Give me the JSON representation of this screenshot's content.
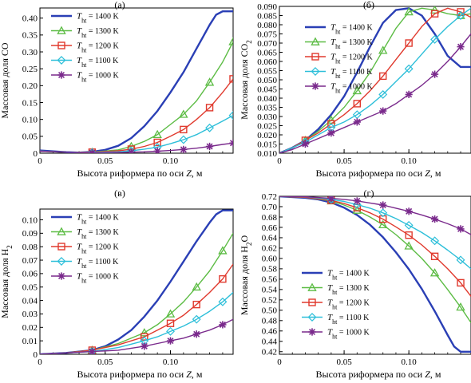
{
  "colors": {
    "1400": "#2a3fb5",
    "1300": "#5cbc44",
    "1200": "#e03a2e",
    "1100": "#2dbfd9",
    "1000": "#7a2a8c"
  },
  "legend_entries": [
    {
      "key": "1400",
      "sym": "line",
      "var": "T",
      "sub": "ht",
      "rest": " = 1400 K"
    },
    {
      "key": "1300",
      "sym": "triangle",
      "var": "T",
      "sub": "ht",
      "rest": " = 1300 K"
    },
    {
      "key": "1200",
      "sym": "square",
      "var": "T",
      "sub": "ht",
      "rest": " = 1200 K"
    },
    {
      "key": "1100",
      "sym": "diamond",
      "var": "T",
      "sub": "ht",
      "rest": " = 1100 K"
    },
    {
      "key": "1000",
      "sym": "star",
      "var": "T",
      "sub": "ht",
      "rest": " = 1000 K"
    }
  ],
  "chart_data": [
    {
      "id": "a",
      "type": "line",
      "panel_label": "(а)",
      "xlabel_pre": "Высота риформера по оси ",
      "xlabel_var": "Z",
      "xlabel_post": ", м",
      "ylabel_parts": [
        {
          "t": "Массовая доля CO"
        }
      ],
      "xlim": [
        0,
        0.148
      ],
      "ylim": [
        0,
        0.43
      ],
      "xticks": [
        0,
        0.05,
        0.1
      ],
      "xtick_labels": [
        "0",
        "0.05",
        "0.10"
      ],
      "yticks": [
        0,
        0.05,
        0.1,
        0.15,
        0.2,
        0.25,
        0.3,
        0.35,
        0.4
      ],
      "ytick_labels": [
        "0",
        "0.05",
        "0.10",
        "0.15",
        "0.20",
        "0.25",
        "0.30",
        "0.35",
        "0.40"
      ],
      "legend_position": "top-left",
      "series": [
        {
          "key": "1400",
          "x": [
            0,
            0.02,
            0.03,
            0.04,
            0.05,
            0.06,
            0.07,
            0.08,
            0.09,
            0.1,
            0.11,
            0.12,
            0.13,
            0.135,
            0.14,
            0.148
          ],
          "y": [
            0.008,
            0.003,
            0.002,
            0.004,
            0.01,
            0.022,
            0.045,
            0.08,
            0.125,
            0.18,
            0.24,
            0.31,
            0.38,
            0.41,
            0.42,
            0.42
          ]
        },
        {
          "key": "1300",
          "x": [
            0,
            0.02,
            0.04,
            0.06,
            0.07,
            0.08,
            0.09,
            0.1,
            0.11,
            0.12,
            0.13,
            0.14,
            0.148
          ],
          "y": [
            0.006,
            0.003,
            0.003,
            0.01,
            0.02,
            0.035,
            0.055,
            0.085,
            0.115,
            0.155,
            0.21,
            0.27,
            0.33
          ]
        },
        {
          "key": "1200",
          "x": [
            0,
            0.02,
            0.04,
            0.06,
            0.07,
            0.08,
            0.09,
            0.1,
            0.11,
            0.12,
            0.13,
            0.14,
            0.148
          ],
          "y": [
            0.006,
            0.003,
            0.003,
            0.007,
            0.012,
            0.02,
            0.032,
            0.05,
            0.07,
            0.1,
            0.135,
            0.18,
            0.22
          ]
        },
        {
          "key": "1100",
          "x": [
            0,
            0.02,
            0.04,
            0.06,
            0.07,
            0.08,
            0.09,
            0.1,
            0.11,
            0.12,
            0.13,
            0.14,
            0.148
          ],
          "y": [
            0.006,
            0.003,
            0.002,
            0.004,
            0.007,
            0.012,
            0.018,
            0.028,
            0.04,
            0.055,
            0.075,
            0.095,
            0.112
          ]
        },
        {
          "key": "1000",
          "x": [
            0,
            0.02,
            0.04,
            0.06,
            0.07,
            0.08,
            0.09,
            0.1,
            0.11,
            0.12,
            0.13,
            0.14,
            0.148
          ],
          "y": [
            0.006,
            0.003,
            0.001,
            0.002,
            0.003,
            0.004,
            0.006,
            0.008,
            0.011,
            0.015,
            0.02,
            0.026,
            0.03
          ]
        }
      ]
    },
    {
      "id": "b",
      "type": "line",
      "panel_label": "(б)",
      "xlabel_pre": "Высота риформера по оси ",
      "xlabel_var": "Z",
      "xlabel_post": ", м",
      "ylabel_parts": [
        {
          "t": "Массовая доля CO"
        },
        {
          "t": "2",
          "sub": true
        }
      ],
      "xlim": [
        0,
        0.148
      ],
      "ylim": [
        0.01,
        0.09
      ],
      "xticks": [
        0,
        0.05,
        0.1
      ],
      "xtick_labels": [
        "0",
        "0.05",
        "0.10"
      ],
      "yticks": [
        0.01,
        0.015,
        0.02,
        0.025,
        0.03,
        0.035,
        0.04,
        0.045,
        0.05,
        0.055,
        0.06,
        0.065,
        0.07,
        0.075,
        0.08,
        0.085,
        0.09
      ],
      "ytick_labels": [
        "0.010",
        "0.015",
        "0.020",
        "0.025",
        "0.030",
        "0.035",
        "0.040",
        "0.045",
        "0.050",
        "0.055",
        "0.060",
        "0.065",
        "0.070",
        "0.075",
        "0.080",
        "0.085",
        "0.090"
      ],
      "legend_position": "top-left",
      "series": [
        {
          "key": "1400",
          "x": [
            0,
            0.01,
            0.02,
            0.03,
            0.04,
            0.05,
            0.06,
            0.07,
            0.08,
            0.09,
            0.1,
            0.11,
            0.12,
            0.13,
            0.14,
            0.148
          ],
          "y": [
            0.01,
            0.013,
            0.017,
            0.023,
            0.031,
            0.041,
            0.054,
            0.068,
            0.081,
            0.088,
            0.089,
            0.085,
            0.075,
            0.063,
            0.057,
            0.057
          ]
        },
        {
          "key": "1300",
          "x": [
            0,
            0.01,
            0.02,
            0.03,
            0.04,
            0.05,
            0.06,
            0.07,
            0.08,
            0.09,
            0.1,
            0.11,
            0.12,
            0.13,
            0.14,
            0.148
          ],
          "y": [
            0.01,
            0.013,
            0.017,
            0.022,
            0.028,
            0.035,
            0.044,
            0.054,
            0.066,
            0.078,
            0.087,
            0.089,
            0.088,
            0.086,
            0.085,
            0.086
          ]
        },
        {
          "key": "1200",
          "x": [
            0,
            0.01,
            0.02,
            0.03,
            0.04,
            0.05,
            0.06,
            0.07,
            0.08,
            0.09,
            0.1,
            0.11,
            0.12,
            0.13,
            0.14,
            0.148
          ],
          "y": [
            0.01,
            0.013,
            0.017,
            0.021,
            0.026,
            0.031,
            0.037,
            0.044,
            0.052,
            0.061,
            0.07,
            0.079,
            0.086,
            0.089,
            0.087,
            0.084
          ]
        },
        {
          "key": "1100",
          "x": [
            0,
            0.01,
            0.02,
            0.03,
            0.04,
            0.05,
            0.06,
            0.07,
            0.08,
            0.09,
            0.1,
            0.11,
            0.12,
            0.13,
            0.14,
            0.148
          ],
          "y": [
            0.01,
            0.013,
            0.016,
            0.02,
            0.024,
            0.027,
            0.031,
            0.036,
            0.042,
            0.049,
            0.056,
            0.064,
            0.072,
            0.079,
            0.085,
            0.089
          ]
        },
        {
          "key": "1000",
          "x": [
            0,
            0.01,
            0.02,
            0.03,
            0.04,
            0.05,
            0.06,
            0.07,
            0.08,
            0.09,
            0.1,
            0.11,
            0.12,
            0.13,
            0.14,
            0.148
          ],
          "y": [
            0.01,
            0.012,
            0.015,
            0.018,
            0.021,
            0.024,
            0.027,
            0.03,
            0.033,
            0.037,
            0.042,
            0.047,
            0.053,
            0.06,
            0.068,
            0.075
          ]
        }
      ]
    },
    {
      "id": "c",
      "type": "line",
      "panel_label": "(в)",
      "xlabel_pre": "Высота риформера по оси ",
      "xlabel_var": "Z",
      "xlabel_post": ", м",
      "ylabel_parts": [
        {
          "t": "Массовая доля H"
        },
        {
          "t": "2",
          "sub": true
        }
      ],
      "xlim": [
        0,
        0.148
      ],
      "ylim": [
        0,
        0.108
      ],
      "xticks": [
        0,
        0.05,
        0.1
      ],
      "xtick_labels": [
        "0",
        "0.05",
        "0.10"
      ],
      "yticks": [
        0,
        0.01,
        0.02,
        0.03,
        0.04,
        0.05,
        0.06,
        0.07,
        0.08,
        0.09,
        0.1
      ],
      "ytick_labels": [
        "0",
        "0.01",
        "0.02",
        "0.03",
        "0.04",
        "0.05",
        "0.06",
        "0.07",
        "0.08",
        "0.09",
        "0.10"
      ],
      "legend_position": "top-left",
      "series": [
        {
          "key": "1400",
          "x": [
            0,
            0.02,
            0.04,
            0.05,
            0.06,
            0.07,
            0.08,
            0.09,
            0.1,
            0.11,
            0.12,
            0.13,
            0.135,
            0.14,
            0.148
          ],
          "y": [
            0,
            0.001,
            0.003,
            0.006,
            0.011,
            0.018,
            0.028,
            0.04,
            0.054,
            0.069,
            0.084,
            0.098,
            0.104,
            0.107,
            0.107
          ]
        },
        {
          "key": "1300",
          "x": [
            0,
            0.02,
            0.04,
            0.06,
            0.08,
            0.09,
            0.1,
            0.11,
            0.12,
            0.13,
            0.14,
            0.148
          ],
          "y": [
            0,
            0.001,
            0.003,
            0.008,
            0.016,
            0.022,
            0.03,
            0.039,
            0.05,
            0.062,
            0.077,
            0.09
          ]
        },
        {
          "key": "1200",
          "x": [
            0,
            0.02,
            0.04,
            0.06,
            0.08,
            0.09,
            0.1,
            0.11,
            0.12,
            0.13,
            0.14,
            0.148
          ],
          "y": [
            0,
            0.001,
            0.003,
            0.007,
            0.013,
            0.018,
            0.023,
            0.029,
            0.037,
            0.046,
            0.056,
            0.067
          ]
        },
        {
          "key": "1100",
          "x": [
            0,
            0.02,
            0.04,
            0.06,
            0.08,
            0.09,
            0.1,
            0.11,
            0.12,
            0.13,
            0.14,
            0.148
          ],
          "y": [
            0,
            0.001,
            0.002,
            0.005,
            0.01,
            0.013,
            0.017,
            0.021,
            0.026,
            0.032,
            0.039,
            0.046
          ]
        },
        {
          "key": "1000",
          "x": [
            0,
            0.02,
            0.04,
            0.06,
            0.08,
            0.09,
            0.1,
            0.11,
            0.12,
            0.13,
            0.14,
            0.148
          ],
          "y": [
            0,
            0.001,
            0.002,
            0.003,
            0.006,
            0.008,
            0.01,
            0.012,
            0.015,
            0.018,
            0.022,
            0.026
          ]
        }
      ]
    },
    {
      "id": "d",
      "type": "line",
      "panel_label": "(г)",
      "xlabel_pre": "Высота риформера по оси ",
      "xlabel_var": "Z",
      "xlabel_post": ", м",
      "ylabel_parts": [
        {
          "t": "Массовая доля H"
        },
        {
          "t": "2",
          "sub": true
        },
        {
          "t": "O"
        }
      ],
      "xlim": [
        0,
        0.148
      ],
      "ylim": [
        0.415,
        0.72
      ],
      "xticks": [
        0,
        0.05,
        0.1
      ],
      "xtick_labels": [
        "0",
        "0.05",
        "0.10"
      ],
      "yticks": [
        0.42,
        0.44,
        0.46,
        0.48,
        0.5,
        0.52,
        0.54,
        0.56,
        0.58,
        0.6,
        0.62,
        0.64,
        0.66,
        0.68,
        0.7,
        0.72
      ],
      "ytick_labels": [
        "0.42",
        "0.44",
        "0.46",
        "0.48",
        "0.50",
        "0.52",
        "0.54",
        "0.56",
        "0.58",
        "0.60",
        "0.62",
        "0.64",
        "0.66",
        "0.68",
        "0.70",
        "0.72"
      ],
      "legend_position": "bottom-left",
      "series": [
        {
          "key": "1400",
          "x": [
            0,
            0.02,
            0.03,
            0.04,
            0.05,
            0.06,
            0.07,
            0.08,
            0.09,
            0.1,
            0.11,
            0.12,
            0.13,
            0.135,
            0.14,
            0.148
          ],
          "y": [
            0.72,
            0.717,
            0.714,
            0.708,
            0.698,
            0.684,
            0.665,
            0.641,
            0.612,
            0.579,
            0.541,
            0.498,
            0.452,
            0.43,
            0.42,
            0.42
          ]
        },
        {
          "key": "1300",
          "x": [
            0,
            0.02,
            0.04,
            0.05,
            0.06,
            0.07,
            0.08,
            0.09,
            0.1,
            0.11,
            0.12,
            0.13,
            0.14,
            0.148
          ],
          "y": [
            0.72,
            0.718,
            0.711,
            0.703,
            0.693,
            0.68,
            0.665,
            0.646,
            0.624,
            0.6,
            0.572,
            0.54,
            0.506,
            0.476
          ]
        },
        {
          "key": "1200",
          "x": [
            0,
            0.02,
            0.04,
            0.05,
            0.06,
            0.07,
            0.08,
            0.09,
            0.1,
            0.11,
            0.12,
            0.13,
            0.14,
            0.148
          ],
          "y": [
            0.72,
            0.718,
            0.712,
            0.706,
            0.698,
            0.688,
            0.676,
            0.661,
            0.645,
            0.626,
            0.604,
            0.58,
            0.553,
            0.527
          ]
        },
        {
          "key": "1100",
          "x": [
            0,
            0.02,
            0.04,
            0.05,
            0.06,
            0.07,
            0.08,
            0.09,
            0.1,
            0.11,
            0.12,
            0.13,
            0.14,
            0.148
          ],
          "y": [
            0.72,
            0.719,
            0.714,
            0.71,
            0.704,
            0.697,
            0.688,
            0.677,
            0.664,
            0.65,
            0.634,
            0.616,
            0.597,
            0.58
          ]
        },
        {
          "key": "1000",
          "x": [
            0,
            0.02,
            0.04,
            0.05,
            0.06,
            0.07,
            0.08,
            0.09,
            0.1,
            0.11,
            0.12,
            0.13,
            0.14,
            0.148
          ],
          "y": [
            0.72,
            0.719,
            0.716,
            0.714,
            0.711,
            0.707,
            0.703,
            0.697,
            0.691,
            0.684,
            0.676,
            0.667,
            0.657,
            0.646
          ]
        }
      ]
    }
  ]
}
